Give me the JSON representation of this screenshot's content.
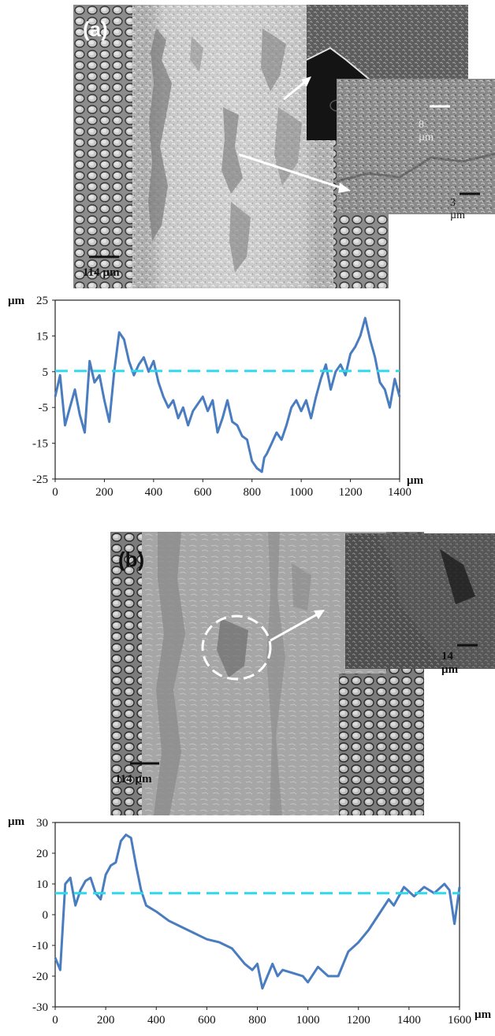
{
  "panel_a": {
    "label": "(a)",
    "scale_main": "114 µm",
    "scale_inset1": "8 µm",
    "scale_inset2": "3 µm"
  },
  "panel_b": {
    "label": "(b)",
    "scale_main": "114 µm",
    "scale_inset": "14 µm"
  },
  "chart_data": [
    {
      "type": "line",
      "title": "",
      "xlabel": "µm",
      "ylabel": "µm",
      "xlim": [
        0,
        1400
      ],
      "ylim": [
        -25,
        25
      ],
      "xticks": [
        0,
        200,
        400,
        600,
        800,
        1000,
        1200,
        1400
      ],
      "yticks": [
        -25,
        -15,
        -5,
        5,
        15,
        25
      ],
      "grid": false,
      "series": [
        {
          "color": "#4a7cc0",
          "x": [
            0,
            20,
            40,
            60,
            80,
            100,
            120,
            140,
            160,
            180,
            200,
            220,
            240,
            260,
            280,
            300,
            320,
            340,
            360,
            380,
            400,
            420,
            440,
            460,
            480,
            500,
            520,
            540,
            560,
            580,
            600,
            620,
            640,
            660,
            680,
            700,
            720,
            740,
            760,
            780,
            800,
            820,
            840,
            850,
            860,
            880,
            900,
            920,
            940,
            960,
            980,
            1000,
            1020,
            1040,
            1060,
            1080,
            1100,
            1120,
            1140,
            1160,
            1180,
            1200,
            1220,
            1240,
            1260,
            1280,
            1300,
            1320,
            1340,
            1360,
            1380,
            1400
          ],
          "y": [
            -2,
            4,
            -10,
            -5,
            0,
            -7,
            -12,
            8,
            2,
            4,
            -3,
            -9,
            5,
            16,
            14,
            8,
            4,
            7,
            9,
            5,
            8,
            2,
            -2,
            -5,
            -3,
            -8,
            -5,
            -10,
            -6,
            -4,
            -2,
            -6,
            -3,
            -12,
            -8,
            -3,
            -9,
            -10,
            -13,
            -14,
            -20,
            -22,
            -23,
            -19,
            -18,
            -15,
            -12,
            -14,
            -10,
            -5,
            -3,
            -6,
            -3,
            -8,
            -2,
            3,
            7,
            0,
            5,
            7,
            4,
            10,
            12,
            15,
            20,
            14,
            9,
            2,
            0,
            -5,
            3,
            -2
          ]
        },
        {
          "color": "#2fd8ea",
          "x": [
            0,
            1400
          ],
          "y": [
            5.2,
            5.2
          ]
        }
      ]
    },
    {
      "type": "line",
      "title": "",
      "xlabel": "µm",
      "ylabel": "µm",
      "xlim": [
        0,
        1600
      ],
      "ylim": [
        -30,
        30
      ],
      "xticks": [
        0,
        200,
        400,
        600,
        800,
        1000,
        1200,
        1400,
        1600
      ],
      "yticks": [
        -30,
        -20,
        -10,
        0,
        10,
        20,
        30
      ],
      "grid": false,
      "series": [
        {
          "color": "#4a7cc0",
          "x": [
            0,
            20,
            40,
            60,
            80,
            100,
            120,
            140,
            160,
            180,
            200,
            220,
            240,
            260,
            280,
            300,
            320,
            340,
            360,
            380,
            400,
            450,
            500,
            550,
            600,
            650,
            700,
            750,
            780,
            800,
            820,
            840,
            860,
            880,
            900,
            940,
            980,
            1000,
            1040,
            1080,
            1120,
            1160,
            1200,
            1240,
            1280,
            1320,
            1340,
            1380,
            1420,
            1460,
            1500,
            1540,
            1560,
            1580,
            1600
          ],
          "y": [
            -14,
            -18,
            10,
            12,
            3,
            8,
            11,
            12,
            7,
            5,
            13,
            16,
            17,
            24,
            26,
            25,
            16,
            8,
            3,
            2,
            1,
            -2,
            -4,
            -6,
            -8,
            -9,
            -11,
            -16,
            -18,
            -16,
            -24,
            -20,
            -16,
            -20,
            -18,
            -19,
            -20,
            -22,
            -17,
            -20,
            -20,
            -12,
            -9,
            -5,
            0,
            5,
            3,
            9,
            6,
            9,
            7,
            10,
            8,
            -3,
            9
          ]
        },
        {
          "color": "#2fd8ea",
          "x": [
            0,
            1600
          ],
          "y": [
            7,
            7
          ]
        }
      ]
    }
  ]
}
